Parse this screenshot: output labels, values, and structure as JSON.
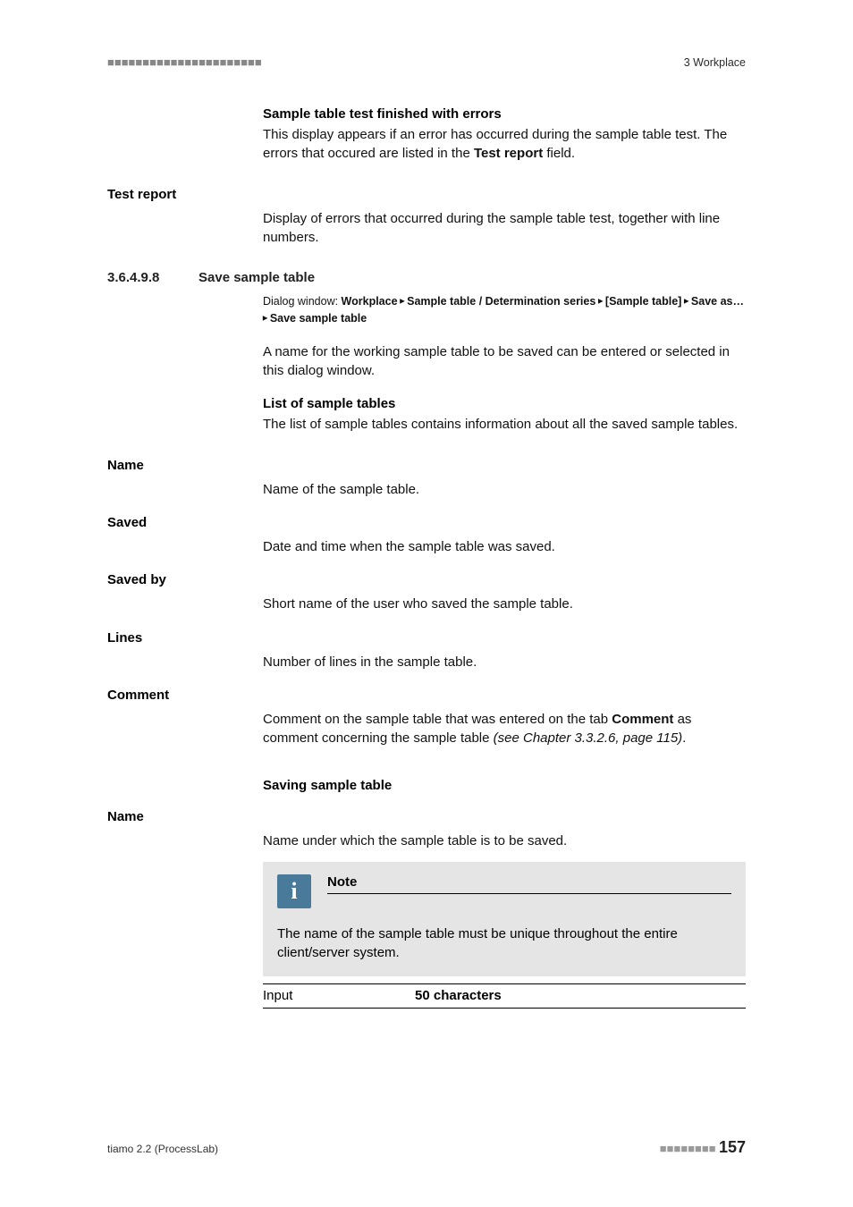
{
  "header": {
    "left_marker": "■■■■■■■■■■■■■■■■■■■■■■",
    "right": "3 Workplace"
  },
  "intro": {
    "err_heading": "Sample table test finished with errors",
    "err_body_a": "This display appears if an error has occurred during the sample table test. The errors that occured are listed in the ",
    "err_body_bold": "Test report",
    "err_body_b": " field."
  },
  "test_report": {
    "label": "Test report",
    "body": "Display of errors that occurred during the sample table test, together with line numbers."
  },
  "section": {
    "number": "3.6.4.9.8",
    "title": "Save sample table",
    "dialog_prefix": "Dialog window: ",
    "path_1": "Workplace",
    "sep": " ▸ ",
    "path_2": "Sample table / Determination series",
    "path_3": "[Sample table]",
    "path_4": "Save as…",
    "path_5": "Save sample table",
    "body": "A name for the working sample table to be saved can be entered or selected in this dialog window.",
    "list_heading": "List of sample tables",
    "list_body": "The list of sample tables contains information about all the saved sample tables."
  },
  "fields": {
    "name": {
      "label": "Name",
      "body": "Name of the sample table."
    },
    "saved": {
      "label": "Saved",
      "body": "Date and time when the sample table was saved."
    },
    "saved_by": {
      "label": "Saved by",
      "body": "Short name of the user who saved the sample table."
    },
    "lines": {
      "label": "Lines",
      "body": "Number of lines in the sample table."
    },
    "comment": {
      "label": "Comment",
      "body_a": "Comment on the sample table that was entered on the tab ",
      "body_bold": "Comment",
      "body_b": " as comment concerning the sample table ",
      "body_italic": "(see Chapter 3.3.2.6, page 115)",
      "body_c": "."
    }
  },
  "saving": {
    "heading": "Saving sample table",
    "name_label": "Name",
    "name_body": "Name under which the sample table is to be saved.",
    "note_title": "Note",
    "note_body": "The name of the sample table must be unique throughout the entire client/server system.",
    "input_label": "Input",
    "input_value": "50 characters"
  },
  "footer": {
    "left": "tiamo 2.2 (ProcessLab)",
    "dashes": "■■■■■■■■",
    "page": "157"
  }
}
